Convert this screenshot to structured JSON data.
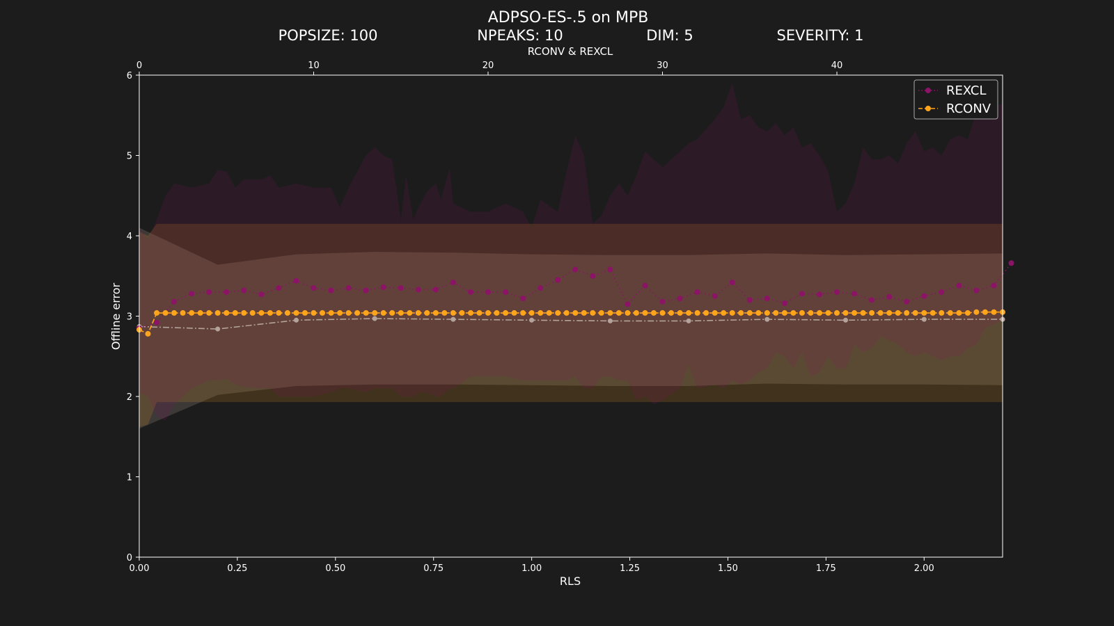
{
  "chart_data": {
    "type": "line",
    "title": "ADPSO-ES-.5 on MPB",
    "params": [
      "POPSIZE: 100",
      "NPEAKS: 10",
      "DIM: 5",
      "SEVERITY: 1"
    ],
    "xlabel": "RLS",
    "ylabel": "Offline error",
    "top_xlabel": "RCONV & REXCL",
    "xlim": [
      0,
      2.2
    ],
    "ylim": [
      0,
      6
    ],
    "top_xlim": [
      0,
      49.5
    ],
    "x_ticks": [
      "0.00",
      "0.25",
      "0.50",
      "0.75",
      "1.00",
      "1.25",
      "1.50",
      "1.75",
      "2.00"
    ],
    "y_ticks": [
      "0",
      "1",
      "2",
      "3",
      "4",
      "5",
      "6"
    ],
    "top_ticks": [
      "0",
      "10",
      "20",
      "30",
      "40"
    ],
    "legend_position": "top-right",
    "grid": false,
    "colors": {
      "background": "#1c1c1c",
      "rexcl": "#8b1466",
      "rconv": "#ffa51c",
      "rls": "#b3a39b"
    },
    "series": [
      {
        "name": "REXCL",
        "axis": "top",
        "style": "dotted",
        "x": [
          0,
          1,
          2,
          3,
          4,
          5,
          6,
          7,
          8,
          9,
          10,
          11,
          12,
          13,
          14,
          15,
          16,
          17,
          18,
          19,
          20,
          21,
          22,
          23,
          24,
          25,
          26,
          27,
          28,
          29,
          30,
          31,
          32,
          33,
          34,
          35,
          36,
          37,
          38,
          39,
          40,
          41,
          42,
          43,
          44,
          45,
          46,
          47,
          48,
          49,
          50
        ],
        "values": [
          2.85,
          2.92,
          3.18,
          3.28,
          3.3,
          3.3,
          3.32,
          3.27,
          3.35,
          3.44,
          3.35,
          3.32,
          3.35,
          3.32,
          3.36,
          3.35,
          3.33,
          3.33,
          3.42,
          3.3,
          3.3,
          3.3,
          3.22,
          3.35,
          3.45,
          3.58,
          3.5,
          3.58,
          3.15,
          3.38,
          3.18,
          3.22,
          3.3,
          3.25,
          3.42,
          3.2,
          3.22,
          3.16,
          3.28,
          3.27,
          3.3,
          3.28,
          3.2,
          3.24,
          3.18,
          3.25,
          3.3,
          3.38,
          3.32,
          3.38,
          3.66
        ],
        "band": [
          [
            0,
            2.05,
            4.1
          ],
          [
            0.5,
            2.0,
            3.95
          ],
          [
            1,
            1.75,
            4.2
          ],
          [
            1.5,
            1.7,
            4.5
          ],
          [
            2,
            1.9,
            4.65
          ],
          [
            3,
            2.1,
            4.6
          ],
          [
            4,
            2.2,
            4.65
          ],
          [
            4.5,
            2.2,
            4.82
          ],
          [
            5,
            2.22,
            4.8
          ],
          [
            5.5,
            2.15,
            4.6
          ],
          [
            6,
            2.12,
            4.7
          ],
          [
            7,
            2.1,
            4.7
          ],
          [
            7.5,
            2.1,
            4.75
          ],
          [
            8,
            2.0,
            4.6
          ],
          [
            9,
            2.0,
            4.65
          ],
          [
            10,
            2.0,
            4.6
          ],
          [
            11,
            2.05,
            4.6
          ],
          [
            11.5,
            2.1,
            4.35
          ],
          [
            12,
            2.1,
            4.6
          ],
          [
            13,
            2.05,
            5.0
          ],
          [
            13.5,
            2.1,
            5.1
          ],
          [
            14,
            2.1,
            5.0
          ],
          [
            14.5,
            2.1,
            4.95
          ],
          [
            15,
            2.0,
            4.2
          ],
          [
            15.3,
            2.0,
            4.75
          ],
          [
            15.7,
            2.0,
            4.2
          ],
          [
            16,
            2.05,
            4.35
          ],
          [
            16.5,
            2.05,
            4.55
          ],
          [
            17,
            2.0,
            4.65
          ],
          [
            17.3,
            2.0,
            4.45
          ],
          [
            17.8,
            2.1,
            4.85
          ],
          [
            18,
            2.1,
            4.4
          ],
          [
            19,
            2.25,
            4.3
          ],
          [
            20,
            2.25,
            4.3
          ],
          [
            21,
            2.25,
            4.4
          ],
          [
            22,
            2.2,
            4.3
          ],
          [
            22.5,
            2.2,
            4.1
          ],
          [
            23,
            2.2,
            4.45
          ],
          [
            24,
            2.2,
            4.3
          ],
          [
            24.5,
            2.2,
            4.8
          ],
          [
            25,
            2.25,
            5.25
          ],
          [
            25.5,
            2.1,
            5.0
          ],
          [
            26,
            2.1,
            4.15
          ],
          [
            26.5,
            2.25,
            4.25
          ],
          [
            27,
            2.25,
            4.5
          ],
          [
            27.5,
            2.2,
            4.65
          ],
          [
            28,
            2.2,
            4.5
          ],
          [
            28.5,
            1.95,
            4.75
          ],
          [
            29,
            2.0,
            5.05
          ],
          [
            29.5,
            1.9,
            4.95
          ],
          [
            30,
            1.95,
            4.85
          ],
          [
            31,
            2.1,
            5.05
          ],
          [
            31.5,
            2.4,
            5.15
          ],
          [
            32,
            2.1,
            5.2
          ],
          [
            33,
            2.15,
            5.45
          ],
          [
            33.5,
            2.1,
            5.6
          ],
          [
            34,
            2.2,
            5.9
          ],
          [
            34.5,
            2.15,
            5.45
          ],
          [
            35,
            2.2,
            5.5
          ],
          [
            35.5,
            2.3,
            5.35
          ],
          [
            36,
            2.35,
            5.3
          ],
          [
            36.5,
            2.55,
            5.4
          ],
          [
            37,
            2.5,
            5.25
          ],
          [
            37.5,
            2.35,
            5.35
          ],
          [
            38,
            2.55,
            5.1
          ],
          [
            38.5,
            2.25,
            5.15
          ],
          [
            39,
            2.3,
            5.0
          ],
          [
            39.5,
            2.5,
            4.8
          ],
          [
            40,
            2.35,
            4.3
          ],
          [
            40.5,
            2.35,
            4.4
          ],
          [
            41,
            2.65,
            4.65
          ],
          [
            41.5,
            2.55,
            5.1
          ],
          [
            42,
            2.6,
            4.95
          ],
          [
            42.5,
            2.75,
            4.95
          ],
          [
            43,
            2.7,
            5.0
          ],
          [
            43.5,
            2.65,
            4.9
          ],
          [
            44,
            2.55,
            5.15
          ],
          [
            44.5,
            2.5,
            5.3
          ],
          [
            45,
            2.55,
            5.05
          ],
          [
            45.5,
            2.5,
            5.1
          ],
          [
            46,
            2.45,
            5.0
          ],
          [
            46.5,
            2.5,
            5.2
          ],
          [
            47,
            2.5,
            5.25
          ],
          [
            47.5,
            2.6,
            5.2
          ],
          [
            48,
            2.65,
            5.55
          ],
          [
            48.5,
            2.85,
            5.6
          ],
          [
            49,
            2.9,
            5.6
          ],
          [
            49.5,
            2.95,
            5.65
          ]
        ]
      },
      {
        "name": "RCONV",
        "axis": "top",
        "style": "dashed",
        "x": [
          0,
          0.5,
          1,
          1.5,
          2,
          2.5,
          3,
          3.5,
          4,
          4.5,
          5,
          5.5,
          6,
          6.5,
          7,
          7.5,
          8,
          8.5,
          9,
          9.5,
          10,
          10.5,
          11,
          11.5,
          12,
          12.5,
          13,
          13.5,
          14,
          14.5,
          15,
          15.5,
          16,
          16.5,
          17,
          17.5,
          18,
          18.5,
          19,
          19.5,
          20,
          20.5,
          21,
          21.5,
          22,
          22.5,
          23,
          23.5,
          24,
          24.5,
          25,
          25.5,
          26,
          26.5,
          27,
          27.5,
          28,
          28.5,
          29,
          29.5,
          30,
          30.5,
          31,
          31.5,
          32,
          32.5,
          33,
          33.5,
          34,
          34.5,
          35,
          35.5,
          36,
          36.5,
          37,
          37.5,
          38,
          38.5,
          39,
          39.5,
          40,
          40.5,
          41,
          41.5,
          42,
          42.5,
          43,
          43.5,
          44,
          44.5,
          45,
          45.5,
          46,
          46.5,
          47,
          47.5,
          48,
          48.5,
          49,
          49.5
        ],
        "values": [
          2.83,
          2.78,
          3.04,
          3.04,
          3.04,
          3.04,
          3.04,
          3.04,
          3.04,
          3.04,
          3.04,
          3.04,
          3.04,
          3.04,
          3.04,
          3.04,
          3.04,
          3.04,
          3.04,
          3.04,
          3.04,
          3.04,
          3.04,
          3.04,
          3.04,
          3.04,
          3.04,
          3.04,
          3.04,
          3.04,
          3.04,
          3.04,
          3.04,
          3.04,
          3.04,
          3.04,
          3.04,
          3.04,
          3.04,
          3.04,
          3.04,
          3.04,
          3.04,
          3.04,
          3.04,
          3.04,
          3.04,
          3.04,
          3.04,
          3.04,
          3.04,
          3.04,
          3.04,
          3.04,
          3.04,
          3.04,
          3.04,
          3.04,
          3.04,
          3.04,
          3.04,
          3.04,
          3.04,
          3.04,
          3.04,
          3.04,
          3.04,
          3.04,
          3.04,
          3.04,
          3.04,
          3.04,
          3.04,
          3.04,
          3.04,
          3.04,
          3.04,
          3.04,
          3.04,
          3.04,
          3.04,
          3.04,
          3.04,
          3.04,
          3.04,
          3.04,
          3.04,
          3.04,
          3.04,
          3.04,
          3.04,
          3.04,
          3.04,
          3.04,
          3.04,
          3.04,
          3.05,
          3.05,
          3.05,
          3.05
        ],
        "band": [
          [
            0,
            1.62,
            4.05
          ],
          [
            0.5,
            1.65,
            4.0
          ],
          [
            1,
            1.93,
            4.15
          ],
          [
            49.5,
            1.93,
            4.15
          ]
        ]
      },
      {
        "name": "RLS",
        "axis": "bottom",
        "style": "dashdot",
        "x": [
          0,
          0.2,
          0.4,
          0.6,
          0.8,
          1.0,
          1.2,
          1.4,
          1.6,
          1.8,
          2.0,
          2.2
        ],
        "values": [
          2.87,
          2.84,
          2.95,
          2.97,
          2.96,
          2.95,
          2.94,
          2.94,
          2.96,
          2.95,
          2.96,
          2.96
        ],
        "band": [
          [
            0,
            1.6,
            4.1
          ],
          [
            0.2,
            2.02,
            3.64
          ],
          [
            0.4,
            2.13,
            3.77
          ],
          [
            0.6,
            2.15,
            3.8
          ],
          [
            0.8,
            2.15,
            3.79
          ],
          [
            1.0,
            2.14,
            3.77
          ],
          [
            1.2,
            2.13,
            3.76
          ],
          [
            1.4,
            2.13,
            3.76
          ],
          [
            1.6,
            2.16,
            3.78
          ],
          [
            1.8,
            2.15,
            3.76
          ],
          [
            2.0,
            2.15,
            3.77
          ],
          [
            2.2,
            2.14,
            3.78
          ]
        ]
      }
    ]
  }
}
